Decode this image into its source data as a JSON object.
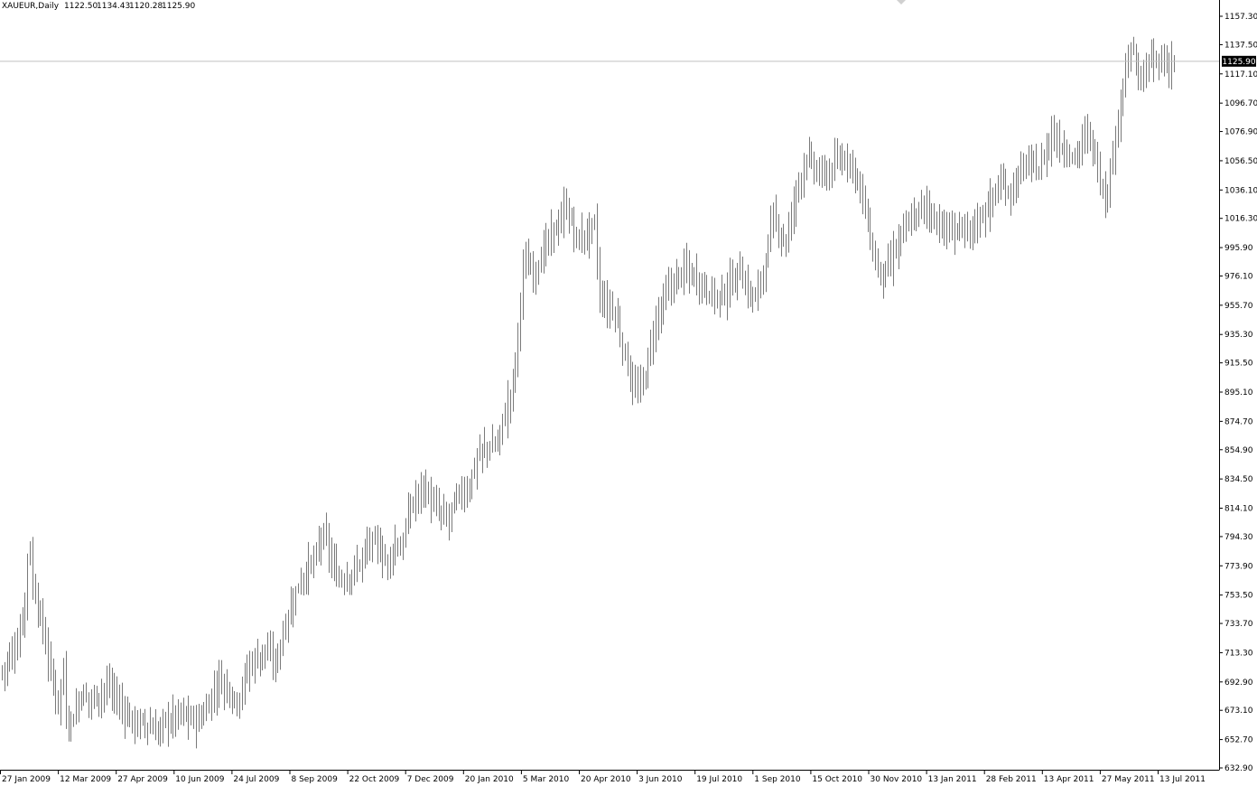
{
  "header": {
    "symbol": "XAUEUR,Daily",
    "open": "1122.50",
    "high": "1134.43",
    "low": "1120.28",
    "close": "1125.90"
  },
  "colors": {
    "background": "#ffffff",
    "bars": "#7a7a7a",
    "axis": "#000000",
    "price_line": "#c0c0c0",
    "price_badge_bg": "#000000",
    "price_badge_text": "#ffffff"
  },
  "chart_data": {
    "type": "bar",
    "style": "ohlc",
    "ylim": [
      632.9,
      1157.3
    ],
    "grid": false,
    "current_price": 1125.9,
    "current_price_label": "1125.90",
    "y_ticks": [
      "1157.30",
      "1137.50",
      "1117.10",
      "1096.70",
      "1076.90",
      "1056.50",
      "1036.10",
      "1016.30",
      "995.90",
      "976.10",
      "955.70",
      "935.30",
      "915.50",
      "895.10",
      "874.70",
      "854.90",
      "834.50",
      "814.10",
      "794.30",
      "773.90",
      "753.50",
      "733.70",
      "713.30",
      "692.90",
      "673.10",
      "652.70",
      "632.90"
    ],
    "x_ticks": [
      "27 Jan 2009",
      "12 Mar 2009",
      "27 Apr 2009",
      "10 Jun 2009",
      "24 Jul 2009",
      "8 Sep 2009",
      "22 Oct 2009",
      "7 Dec 2009",
      "20 Jan 2010",
      "5 Mar 2010",
      "20 Apr 2010",
      "3 Jun 2010",
      "19 Jul 2010",
      "1 Sep 2010",
      "15 Oct 2010",
      "30 Nov 2010",
      "13 Jan 2011",
      "28 Feb 2011",
      "13 Apr 2011",
      "27 May 2011",
      "13 Jul 2011"
    ],
    "bar_count": 460,
    "close_path": [
      [
        0,
        700
      ],
      [
        6,
        720
      ],
      [
        9,
        750
      ],
      [
        10,
        780
      ],
      [
        11,
        785
      ],
      [
        12,
        760
      ],
      [
        13,
        755
      ],
      [
        18,
        710
      ],
      [
        20,
        690
      ],
      [
        22,
        680
      ],
      [
        23,
        690
      ],
      [
        24,
        700
      ],
      [
        25,
        670
      ],
      [
        27,
        665
      ],
      [
        31,
        685
      ],
      [
        34,
        680
      ],
      [
        38,
        685
      ],
      [
        42,
        690
      ],
      [
        45,
        680
      ],
      [
        51,
        665
      ],
      [
        58,
        662
      ],
      [
        61,
        658
      ],
      [
        64,
        665
      ],
      [
        70,
        670
      ],
      [
        77,
        665
      ],
      [
        80,
        675
      ],
      [
        85,
        695
      ],
      [
        92,
        680
      ],
      [
        97,
        705
      ],
      [
        103,
        715
      ],
      [
        107,
        705
      ],
      [
        111,
        735
      ],
      [
        117,
        765
      ],
      [
        123,
        780
      ],
      [
        125,
        795
      ],
      [
        127,
        790
      ],
      [
        130,
        770
      ],
      [
        133,
        765
      ],
      [
        138,
        770
      ],
      [
        144,
        790
      ],
      [
        148,
        785
      ],
      [
        151,
        775
      ],
      [
        154,
        790
      ],
      [
        156,
        785
      ],
      [
        160,
        815
      ],
      [
        165,
        830
      ],
      [
        169,
        815
      ],
      [
        174,
        805
      ],
      [
        178,
        820
      ],
      [
        183,
        830
      ],
      [
        186,
        850
      ],
      [
        189,
        855
      ],
      [
        194,
        860
      ],
      [
        197,
        880
      ],
      [
        200,
        900
      ],
      [
        202,
        935
      ],
      [
        204,
        985
      ],
      [
        208,
        980
      ],
      [
        211,
        990
      ],
      [
        217,
        1010
      ],
      [
        221,
        1025
      ],
      [
        225,
        1000
      ],
      [
        232,
        1010
      ],
      [
        234,
        960
      ],
      [
        240,
        950
      ],
      [
        244,
        920
      ],
      [
        248,
        895
      ],
      [
        251,
        900
      ],
      [
        256,
        945
      ],
      [
        262,
        970
      ],
      [
        267,
        980
      ],
      [
        272,
        975
      ],
      [
        277,
        965
      ],
      [
        281,
        960
      ],
      [
        285,
        970
      ],
      [
        289,
        980
      ],
      [
        292,
        965
      ],
      [
        295,
        960
      ],
      [
        298,
        980
      ],
      [
        302,
        1015
      ],
      [
        307,
        1000
      ],
      [
        311,
        1035
      ],
      [
        315,
        1060
      ],
      [
        318,
        1050
      ],
      [
        322,
        1045
      ],
      [
        327,
        1055
      ],
      [
        331,
        1060
      ],
      [
        335,
        1045
      ],
      [
        338,
        1020
      ],
      [
        342,
        985
      ],
      [
        345,
        975
      ],
      [
        348,
        985
      ],
      [
        351,
        1000
      ],
      [
        356,
        1015
      ],
      [
        361,
        1025
      ],
      [
        366,
        1015
      ],
      [
        370,
        1005
      ],
      [
        373,
        1010
      ],
      [
        378,
        1005
      ],
      [
        382,
        1015
      ],
      [
        386,
        1025
      ],
      [
        391,
        1040
      ],
      [
        395,
        1035
      ],
      [
        401,
        1055
      ],
      [
        406,
        1050
      ],
      [
        411,
        1075
      ],
      [
        416,
        1065
      ],
      [
        420,
        1060
      ],
      [
        425,
        1075
      ],
      [
        428,
        1060
      ],
      [
        432,
        1030
      ],
      [
        434,
        1050
      ],
      [
        436,
        1070
      ],
      [
        438,
        1105
      ],
      [
        441,
        1125
      ],
      [
        443,
        1135
      ],
      [
        445,
        1110
      ],
      [
        447,
        1115
      ],
      [
        449,
        1125
      ]
    ]
  }
}
